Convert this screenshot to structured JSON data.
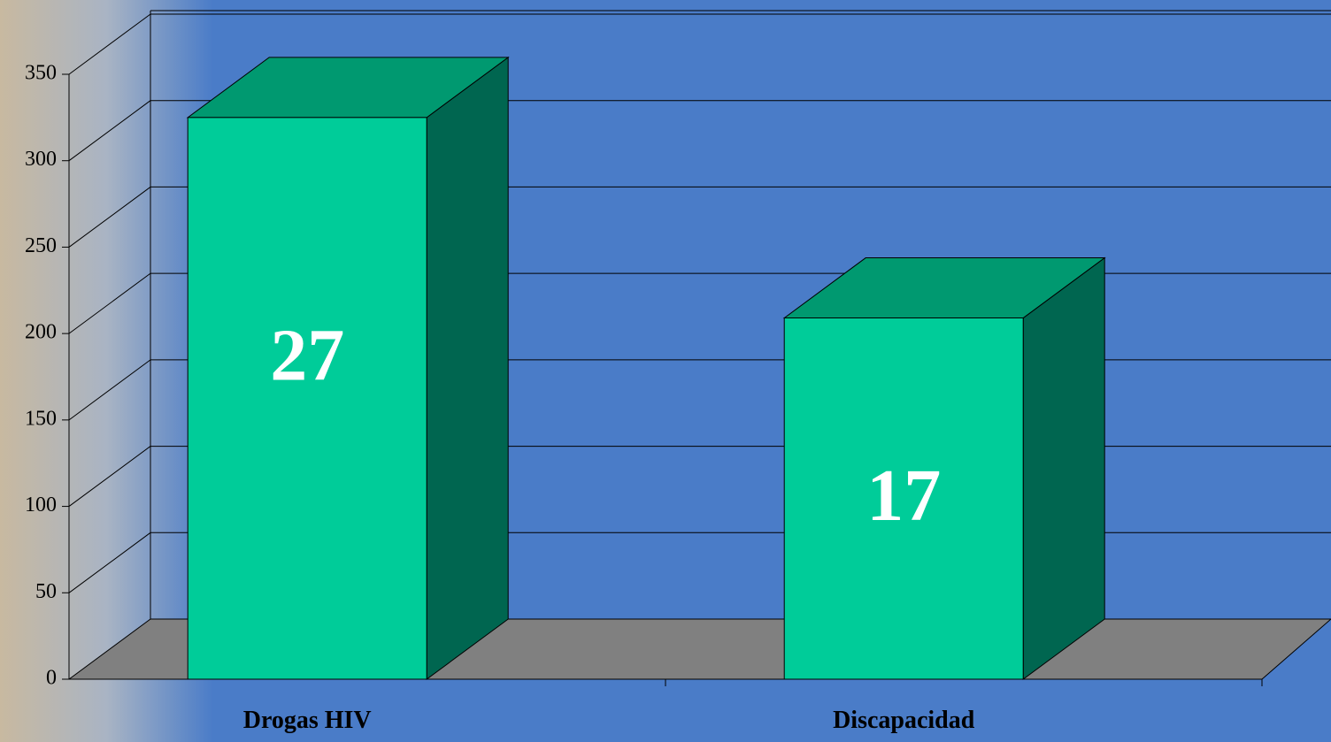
{
  "chart_data": {
    "type": "bar",
    "categories": [
      "Drogas HIV",
      "Discapacidad"
    ],
    "values": [
      325,
      209
    ],
    "annotations": [
      "27",
      "17"
    ],
    "color": "#00cc99",
    "ylim": [
      0,
      350
    ],
    "yticks": [
      0,
      50,
      100,
      150,
      200,
      250,
      300,
      350
    ],
    "grid": true
  }
}
